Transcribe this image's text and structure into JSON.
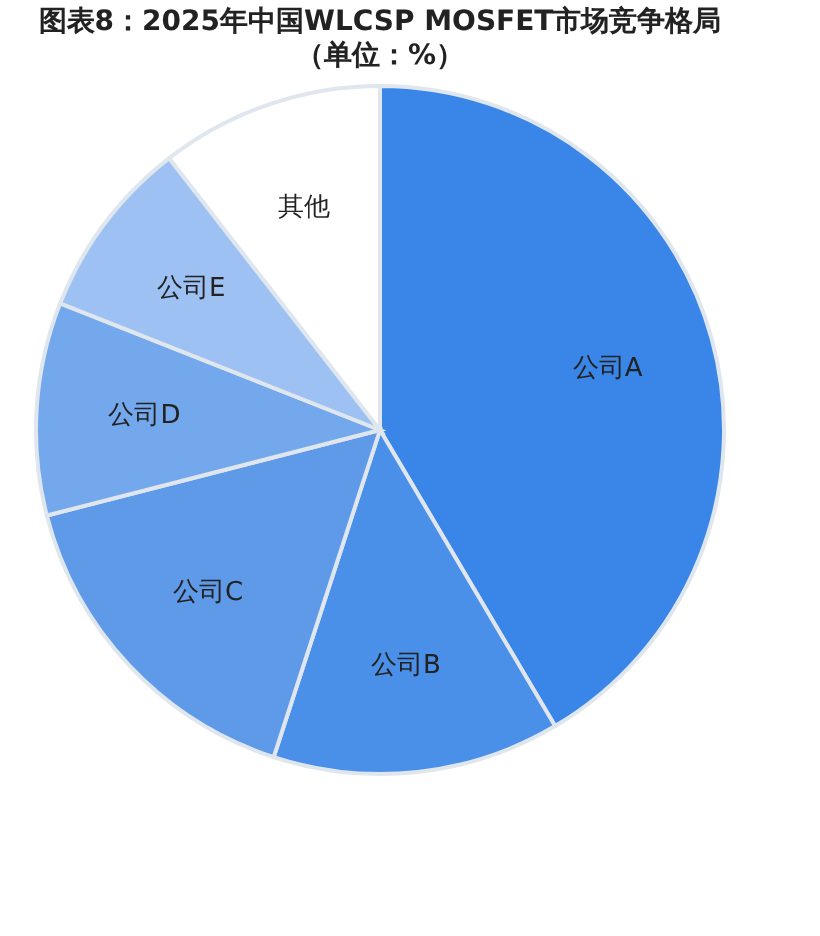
{
  "chart_data": {
    "type": "pie",
    "title": "图表8：2025年中国WLCSP MOSFET市场竞争格局",
    "subtitle": "（单位：%）",
    "categories": [
      "公司A",
      "公司B",
      "公司C",
      "公司D",
      "公司E",
      "其他"
    ],
    "values": [
      41.5,
      13.5,
      16,
      10,
      8.5,
      10.5
    ],
    "colors": [
      "#3a86e8",
      "#4a8fe8",
      "#5f9ae8",
      "#74a8ec",
      "#9dc1f2",
      "#ffffff"
    ],
    "legend": false
  }
}
